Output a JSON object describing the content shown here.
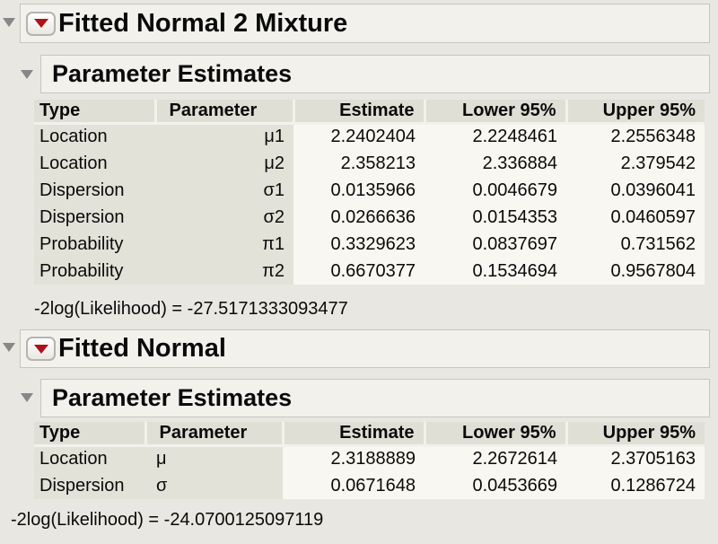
{
  "colors": {
    "page_bg": "#e8e7e2",
    "band_bg": "#f2f1ec",
    "band_border": "#c6c5be",
    "table_header_bg": "#e0dfd6",
    "label_col_bg": "#e3e2d9",
    "num_col_bg": "#f8f7f1",
    "text": "#0a0a0a",
    "red_triangle": "#b01116",
    "disclosure_gray": "#878787",
    "button_border": "#b5b4ad"
  },
  "icons": {
    "disclosure": "triangle-down-icon",
    "menu": "red-triangle-icon"
  },
  "sections": [
    {
      "title": "Fitted Normal 2 Mixture",
      "subtitle": "Parameter Estimates",
      "table": {
        "headers": [
          "Type",
          "Parameter",
          "Estimate",
          "Lower 95%",
          "Upper 95%"
        ],
        "rows": [
          [
            "Location",
            "μ1",
            "2.2402404",
            "2.2248461",
            "2.2556348"
          ],
          [
            "Location",
            "μ2",
            "2.358213",
            "2.336884",
            "2.379542"
          ],
          [
            "Dispersion",
            "σ1",
            "0.0135966",
            "0.0046679",
            "0.0396041"
          ],
          [
            "Dispersion",
            "σ2",
            "0.0266636",
            "0.0154353",
            "0.0460597"
          ],
          [
            "Probability",
            "π1",
            "0.3329623",
            "0.0837697",
            "0.731562"
          ],
          [
            "Probability",
            "π2",
            "0.6670377",
            "0.1534694",
            "0.9567804"
          ]
        ]
      },
      "likelihood": "-2log(Likelihood) = -27.5171333093477"
    },
    {
      "title": "Fitted Normal",
      "subtitle": "Parameter Estimates",
      "table": {
        "headers": [
          "Type",
          "Parameter",
          "Estimate",
          "Lower 95%",
          "Upper 95%"
        ],
        "rows": [
          [
            "Location",
            "μ",
            "2.3188889",
            "2.2672614",
            "2.3705163"
          ],
          [
            "Dispersion",
            "σ",
            "0.0671648",
            "0.0453669",
            "0.1286724"
          ]
        ]
      },
      "likelihood": "-2log(Likelihood) = -24.0700125097119"
    }
  ]
}
